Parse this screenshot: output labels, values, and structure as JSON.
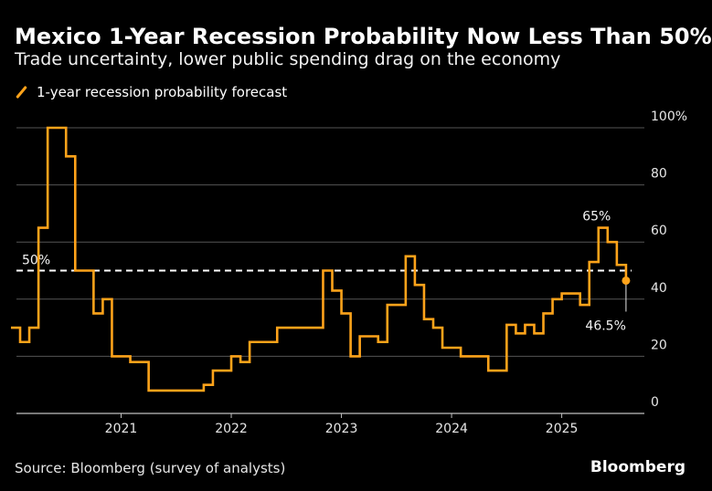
{
  "header": {
    "title": "Mexico 1-Year Recession Probability Now Less Than 50%",
    "subtitle": "Trade uncertainty, lower public spending drag on the economy"
  },
  "footer": {
    "source": "Source: Bloomberg (survey of analysts)",
    "brand": "Bloomberg"
  },
  "colors": {
    "series": "#ffa31a",
    "grid": "#555555",
    "reference": "#ffffff",
    "background": "#000000"
  },
  "chart_data": {
    "type": "line",
    "title": "Mexico 1-Year Recession Probability Now Less Than 50%",
    "subtitle": "Trade uncertainty, lower public spending drag on the economy",
    "ylim": [
      0,
      100
    ],
    "y_ticks": [
      0,
      20,
      40,
      60,
      80,
      100
    ],
    "y_tick_labels": [
      "0",
      "20",
      "40",
      "60",
      "80",
      "100%"
    ],
    "x_ticks": [
      "2021",
      "2022",
      "2023",
      "2024",
      "2025"
    ],
    "legend": {
      "position": "top-left",
      "entries": [
        "1-year recession probability forecast"
      ]
    },
    "reference_line": {
      "value": 50,
      "label": "50%",
      "style": "dashed"
    },
    "annotations": [
      {
        "text": "65%",
        "x": "2025-05",
        "y": 65
      },
      {
        "text": "46.5%",
        "x": "2025-08",
        "y": 46.5
      }
    ],
    "series": [
      {
        "name": "1-year recession probability forecast",
        "points": [
          [
            "2020-01",
            30
          ],
          [
            "2020-02",
            25
          ],
          [
            "2020-03",
            30
          ],
          [
            "2020-04",
            65
          ],
          [
            "2020-05",
            100
          ],
          [
            "2020-06",
            100
          ],
          [
            "2020-07",
            90
          ],
          [
            "2020-08",
            50
          ],
          [
            "2020-09",
            50
          ],
          [
            "2020-10",
            35
          ],
          [
            "2020-11",
            40
          ],
          [
            "2020-12",
            20
          ],
          [
            "2021-01",
            20
          ],
          [
            "2021-02",
            18
          ],
          [
            "2021-03",
            18
          ],
          [
            "2021-04",
            8
          ],
          [
            "2021-05",
            8
          ],
          [
            "2021-06",
            8
          ],
          [
            "2021-07",
            8
          ],
          [
            "2021-08",
            8
          ],
          [
            "2021-09",
            8
          ],
          [
            "2021-10",
            10
          ],
          [
            "2021-11",
            15
          ],
          [
            "2021-12",
            15
          ],
          [
            "2022-01",
            20
          ],
          [
            "2022-02",
            18
          ],
          [
            "2022-03",
            25
          ],
          [
            "2022-04",
            25
          ],
          [
            "2022-05",
            25
          ],
          [
            "2022-06",
            30
          ],
          [
            "2022-07",
            30
          ],
          [
            "2022-08",
            30
          ],
          [
            "2022-09",
            30
          ],
          [
            "2022-10",
            30
          ],
          [
            "2022-11",
            50
          ],
          [
            "2022-12",
            43
          ],
          [
            "2023-01",
            35
          ],
          [
            "2023-02",
            20
          ],
          [
            "2023-03",
            27
          ],
          [
            "2023-04",
            27
          ],
          [
            "2023-05",
            25
          ],
          [
            "2023-06",
            38
          ],
          [
            "2023-07",
            38
          ],
          [
            "2023-08",
            55
          ],
          [
            "2023-09",
            45
          ],
          [
            "2023-10",
            33
          ],
          [
            "2023-11",
            30
          ],
          [
            "2023-12",
            23
          ],
          [
            "2024-01",
            23
          ],
          [
            "2024-02",
            20
          ],
          [
            "2024-03",
            20
          ],
          [
            "2024-04",
            20
          ],
          [
            "2024-05",
            15
          ],
          [
            "2024-06",
            15
          ],
          [
            "2024-07",
            31
          ],
          [
            "2024-08",
            28
          ],
          [
            "2024-09",
            31
          ],
          [
            "2024-10",
            28
          ],
          [
            "2024-11",
            35
          ],
          [
            "2024-12",
            40
          ],
          [
            "2025-01",
            42
          ],
          [
            "2025-02",
            42
          ],
          [
            "2025-03",
            38
          ],
          [
            "2025-04",
            53
          ],
          [
            "2025-05",
            65
          ],
          [
            "2025-06",
            60
          ],
          [
            "2025-07",
            52
          ],
          [
            "2025-08",
            46.5
          ]
        ]
      }
    ]
  }
}
